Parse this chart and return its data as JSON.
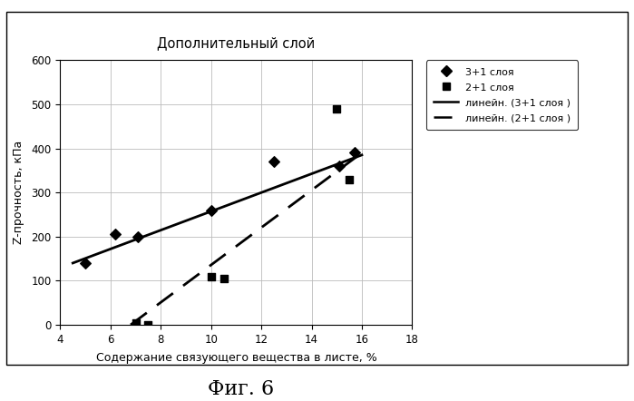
{
  "title": "Дополнительный слой",
  "xlabel": "Содержание связующего вещества в листе, %",
  "ylabel": "Z-прочность, кПа",
  "fig_label": "Фиг. 6",
  "xlim": [
    4,
    18
  ],
  "ylim": [
    0,
    600
  ],
  "xticks": [
    4,
    6,
    8,
    10,
    12,
    14,
    16,
    18
  ],
  "yticks": [
    0,
    100,
    200,
    300,
    400,
    500,
    600
  ],
  "series1_x": [
    5.0,
    6.2,
    7.1,
    10.0,
    12.5,
    15.1,
    15.7
  ],
  "series1_y": [
    140,
    205,
    200,
    260,
    370,
    360,
    390
  ],
  "series1_marker": "D",
  "series1_label": "3+1 слоя",
  "series2_x": [
    7.0,
    7.5,
    10.0,
    10.5,
    15.0,
    15.5
  ],
  "series2_y": [
    5,
    0,
    110,
    105,
    490,
    330
  ],
  "series2_marker": "s",
  "series2_label": "2+1 слоя",
  "line1_x": [
    4.5,
    16.0
  ],
  "line1_y": [
    140,
    385
  ],
  "line1_label": "линейн. (3+1 слоя )",
  "line2_x": [
    6.8,
    16.0
  ],
  "line2_y": [
    0,
    390
  ],
  "line2_label": "линейн. (2+1 слоя )",
  "outer_box_color": "#000000",
  "grid_color": "#bbbbbb",
  "bg_color": "#ffffff",
  "text_color": "#000000"
}
